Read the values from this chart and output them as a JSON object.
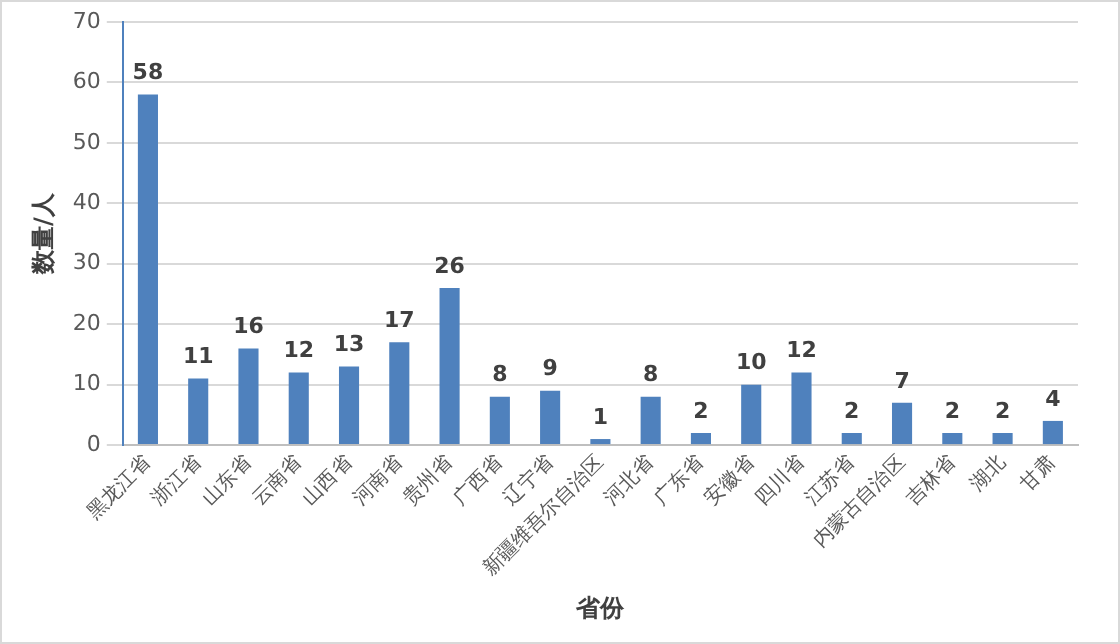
{
  "chart_data": {
    "type": "bar",
    "xlabel": "省份",
    "ylabel": "数量/人",
    "categories": [
      "黑龙江省",
      "浙江省",
      "山东省",
      "云南省",
      "山西省",
      "河南省",
      "贵州省",
      "广西省",
      "辽宁省",
      "新疆维吾尔自治区",
      "河北省",
      "广东省",
      "安徽省",
      "四川省",
      "江苏省",
      "内蒙古自治区",
      "吉林省",
      "湖北",
      "甘肃"
    ],
    "values": [
      58,
      11,
      16,
      12,
      13,
      17,
      26,
      8,
      9,
      1,
      8,
      2,
      10,
      12,
      2,
      7,
      2,
      2,
      4
    ],
    "color": "#4f81bd",
    "ylim": [
      0,
      70
    ],
    "yticks": [
      0,
      10,
      20,
      30,
      40,
      50,
      60,
      70
    ],
    "grid": "y",
    "data_labels": true,
    "legend": false
  }
}
